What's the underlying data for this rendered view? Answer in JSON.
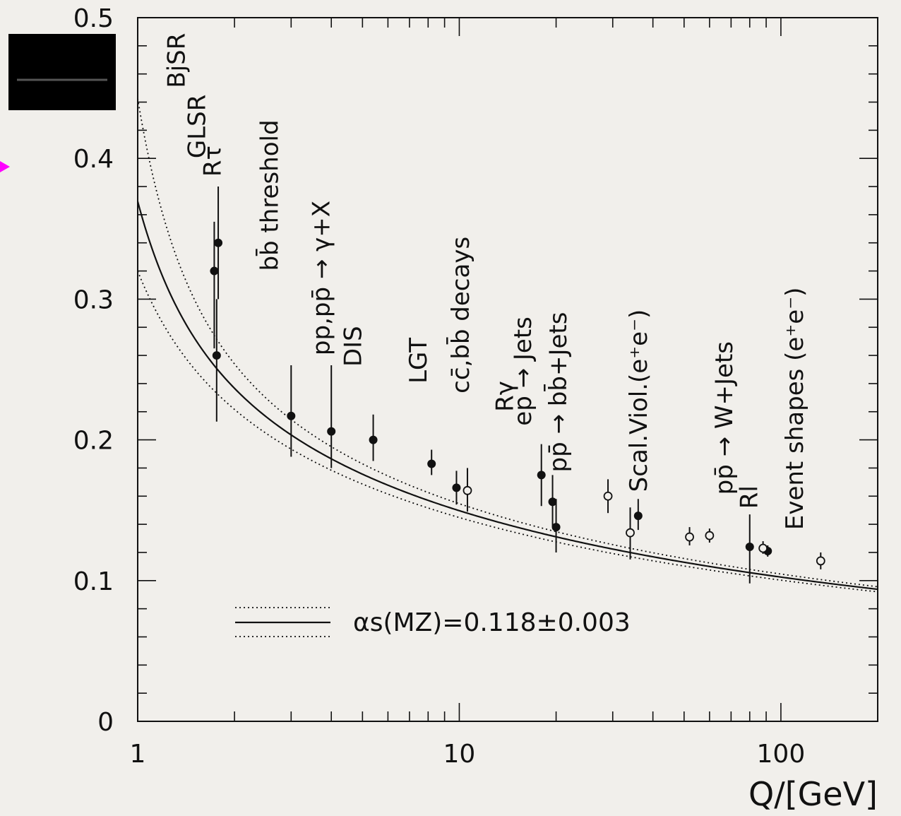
{
  "chart_data": {
    "type": "scatter",
    "title": "",
    "xlabel": "Q/[GeV]",
    "ylabel": "",
    "x_scale": "log",
    "xlim": [
      1,
      200
    ],
    "ylim": [
      0,
      0.5
    ],
    "x_ticks": [
      1,
      10,
      100
    ],
    "x_tick_labels": [
      "1",
      "10",
      "100"
    ],
    "y_ticks": [
      0,
      0.1,
      0.2,
      0.3,
      0.4,
      0.5
    ],
    "y_tick_labels": [
      "0",
      "0.1",
      "0.2",
      "0.3",
      "0.4",
      "0.5"
    ],
    "grid": false,
    "series": [
      {
        "filled": true,
        "points": [
          {
            "x": 1.73,
            "y": 0.32,
            "ylo": 0.265,
            "yhi": 0.355
          },
          {
            "x": 1.78,
            "y": 0.34,
            "ylo": 0.3,
            "yhi": 0.38
          },
          {
            "x": 1.76,
            "y": 0.26,
            "ylo": 0.213,
            "yhi": 0.3
          },
          {
            "x": 3.0,
            "y": 0.217,
            "ylo": 0.188,
            "yhi": 0.253
          },
          {
            "x": 4.0,
            "y": 0.206,
            "ylo": 0.18,
            "yhi": 0.253
          },
          {
            "x": 5.4,
            "y": 0.2,
            "ylo": 0.185,
            "yhi": 0.218
          },
          {
            "x": 8.2,
            "y": 0.183,
            "ylo": 0.175,
            "yhi": 0.193
          },
          {
            "x": 9.8,
            "y": 0.166,
            "ylo": 0.154,
            "yhi": 0.178
          },
          {
            "x": 18.0,
            "y": 0.175,
            "ylo": 0.153,
            "yhi": 0.197
          },
          {
            "x": 19.5,
            "y": 0.156,
            "ylo": 0.138,
            "yhi": 0.175
          },
          {
            "x": 20.0,
            "y": 0.138,
            "ylo": 0.12,
            "yhi": 0.158
          },
          {
            "x": 36.0,
            "y": 0.146,
            "ylo": 0.136,
            "yhi": 0.158
          },
          {
            "x": 80.0,
            "y": 0.124,
            "ylo": 0.098,
            "yhi": 0.147
          },
          {
            "x": 91.0,
            "y": 0.121,
            "ylo": 0.117,
            "yhi": 0.125
          }
        ]
      },
      {
        "filled": false,
        "points": [
          {
            "x": 10.6,
            "y": 0.164,
            "ylo": 0.149,
            "yhi": 0.18
          },
          {
            "x": 29.0,
            "y": 0.16,
            "ylo": 0.148,
            "yhi": 0.172
          },
          {
            "x": 34.0,
            "y": 0.134,
            "ylo": 0.115,
            "yhi": 0.152
          },
          {
            "x": 52.0,
            "y": 0.131,
            "ylo": 0.125,
            "yhi": 0.138
          },
          {
            "x": 60.0,
            "y": 0.132,
            "ylo": 0.127,
            "yhi": 0.137
          },
          {
            "x": 88.0,
            "y": 0.123,
            "ylo": 0.119,
            "yhi": 0.128
          },
          {
            "x": 133.0,
            "y": 0.114,
            "ylo": 0.108,
            "yhi": 0.12
          }
        ]
      }
    ],
    "curves": {
      "central_alpha_mz": 0.118,
      "lower_alpha_mz": 0.115,
      "upper_alpha_mz": 0.121,
      "mz_gev": 91.19
    },
    "annotations": [
      {
        "text": "BjSR",
        "x": 1.4,
        "y": 0.45
      },
      {
        "text": "GLSR",
        "x": 1.62,
        "y": 0.4
      },
      {
        "text": "Rτ",
        "x": 1.81,
        "y": 0.387
      },
      {
        "text": "bb̄ threshold",
        "x": 2.73,
        "y": 0.32
      },
      {
        "text": "pp,pp̄ → γ+X",
        "x": 3.95,
        "y": 0.26
      },
      {
        "text": "DIS",
        "x": 4.95,
        "y": 0.252
      },
      {
        "text": "LGT",
        "x": 7.9,
        "y": 0.24
      },
      {
        "text": "cc̄,bb̄ decays",
        "x": 10.7,
        "y": 0.233
      },
      {
        "text": "Rγ",
        "x": 14.7,
        "y": 0.22
      },
      {
        "text": "ep → Jets",
        "x": 16.7,
        "y": 0.21
      },
      {
        "text": "pp̄ → bb̄+Jets",
        "x": 21.5,
        "y": 0.177
      },
      {
        "text": "Scal.Viol.(e⁺e⁻)",
        "x": 38.3,
        "y": 0.163
      },
      {
        "text": "pp̄ → W+Jets",
        "x": 70.5,
        "y": 0.161
      },
      {
        "text": "Rl",
        "x": 84.5,
        "y": 0.151
      },
      {
        "text": "Event shapes (e⁺e⁻)",
        "x": 117.0,
        "y": 0.136
      }
    ],
    "legend": {
      "placement": "bottom-left",
      "text": "αs(MZ)=0.118±0.003"
    }
  },
  "colors": {
    "background": "#f1efeb",
    "ink": "#111111",
    "marker": "#ff00ff"
  },
  "overlay": {
    "marker_icon": "arrow-right-icon",
    "patch_icon": "black-patch-icon"
  }
}
